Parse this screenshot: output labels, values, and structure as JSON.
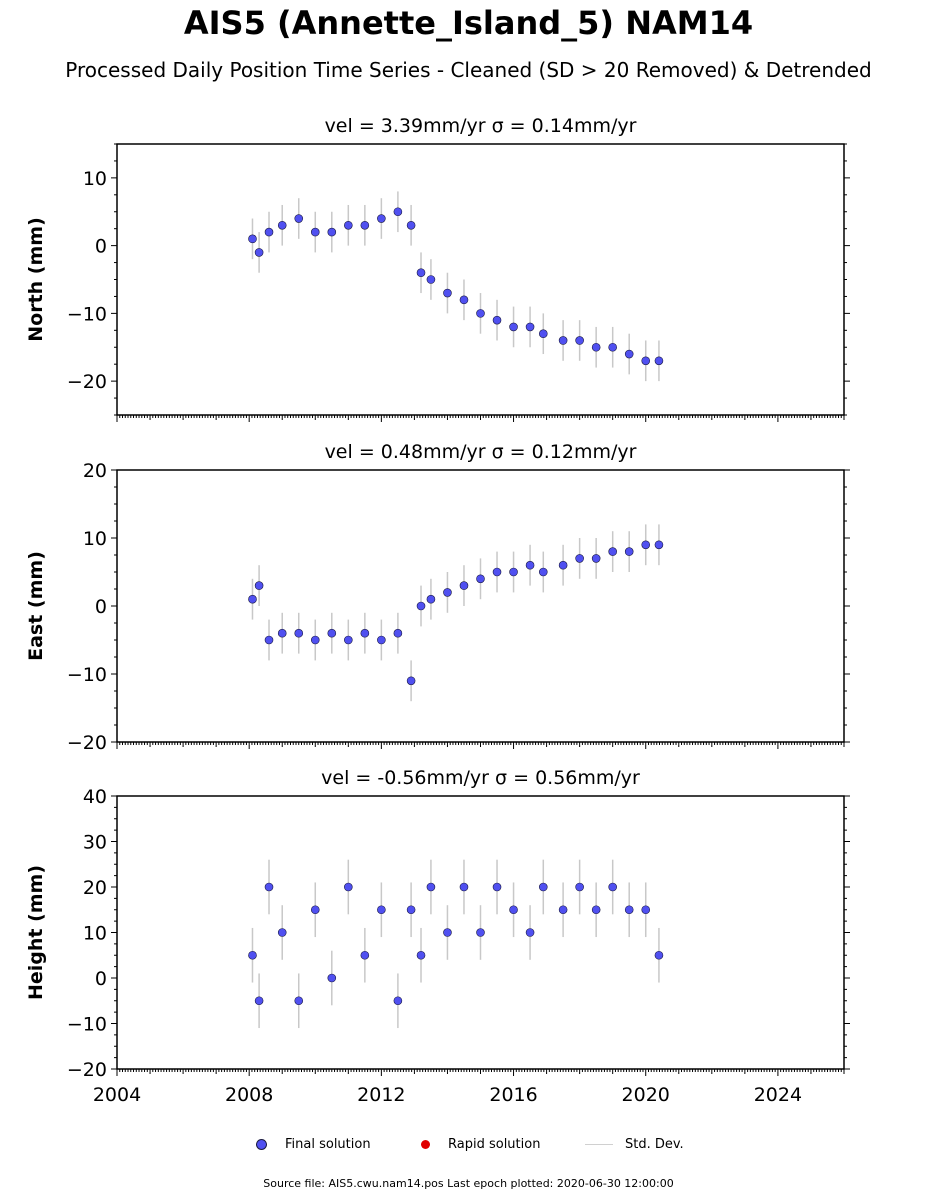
{
  "title": "AIS5 (Annette_Island_5) NAM14",
  "subtitle": "Processed Daily Position Time Series - Cleaned (SD > 20 Removed) & Detrended",
  "footer": "Source file: AIS5.cwu.nam14.pos  Last epoch plotted: 2020-06-30 12:00:00",
  "legend": {
    "final": "Final solution",
    "rapid": "Rapid solution",
    "std": "Std. Dev."
  },
  "colors": {
    "final_fill": "#5050f0",
    "final_edge": "#1a1a40",
    "rapid": "#e00000",
    "std_dev": "#c8c8c8"
  },
  "chart_data": [
    {
      "type": "scatter",
      "panel": "north",
      "title": "vel = 3.39mm/yr   σ = 0.14mm/yr",
      "ylabel": "North (mm)",
      "xlabel": "",
      "ylim": [
        -25,
        15
      ],
      "yticks": [
        -20,
        -10,
        0,
        10
      ],
      "xlim": [
        2004,
        2026
      ],
      "xticks": [
        2004,
        2008,
        2012,
        2016,
        2020,
        2024
      ],
      "series": [
        {
          "name": "Final solution",
          "x": [
            2008.1,
            2008.3,
            2008.6,
            2009.0,
            2009.5,
            2010.0,
            2010.5,
            2011.0,
            2011.5,
            2012.0,
            2012.5,
            2012.9,
            2013.2,
            2013.5,
            2014.0,
            2014.5,
            2015.0,
            2015.5,
            2016.0,
            2016.5,
            2016.9,
            2017.5,
            2018.0,
            2018.5,
            2019.0,
            2019.5,
            2020.0,
            2020.4
          ],
          "y": [
            1,
            -1,
            2,
            3,
            4,
            2,
            2,
            3,
            3,
            4,
            5,
            3,
            -4,
            -5,
            -7,
            -8,
            -10,
            -11,
            -12,
            -12,
            -13,
            -14,
            -14,
            -15,
            -15,
            -16,
            -17,
            -17
          ],
          "yerr": [
            3,
            3,
            3,
            3,
            3,
            3,
            3,
            3,
            3,
            3,
            3,
            3,
            3,
            3,
            3,
            3,
            3,
            3,
            3,
            3,
            3,
            3,
            3,
            3,
            3,
            3,
            3,
            3
          ]
        }
      ]
    },
    {
      "type": "scatter",
      "panel": "east",
      "title": "vel = 0.48mm/yr   σ = 0.12mm/yr",
      "ylabel": "East (mm)",
      "xlabel": "",
      "ylim": [
        -20,
        20
      ],
      "yticks": [
        -20,
        -10,
        0,
        10,
        20
      ],
      "xlim": [
        2004,
        2026
      ],
      "xticks": [
        2004,
        2008,
        2012,
        2016,
        2020,
        2024
      ],
      "series": [
        {
          "name": "Final solution",
          "x": [
            2008.1,
            2008.3,
            2008.6,
            2009.0,
            2009.5,
            2010.0,
            2010.5,
            2011.0,
            2011.5,
            2012.0,
            2012.5,
            2012.9,
            2013.2,
            2013.5,
            2014.0,
            2014.5,
            2015.0,
            2015.5,
            2016.0,
            2016.5,
            2016.9,
            2017.5,
            2018.0,
            2018.5,
            2019.0,
            2019.5,
            2020.0,
            2020.4
          ],
          "y": [
            1,
            3,
            -5,
            -4,
            -4,
            -5,
            -4,
            -5,
            -4,
            -5,
            -4,
            -11,
            0,
            1,
            2,
            3,
            4,
            5,
            5,
            6,
            5,
            6,
            7,
            7,
            8,
            8,
            9,
            9
          ],
          "yerr": [
            3,
            3,
            3,
            3,
            3,
            3,
            3,
            3,
            3,
            3,
            3,
            3,
            3,
            3,
            3,
            3,
            3,
            3,
            3,
            3,
            3,
            3,
            3,
            3,
            3,
            3,
            3,
            3
          ]
        }
      ]
    },
    {
      "type": "scatter",
      "panel": "height",
      "title": "vel = -0.56mm/yr   σ = 0.56mm/yr",
      "ylabel": "Height (mm)",
      "xlabel": "",
      "ylim": [
        -20,
        40
      ],
      "yticks": [
        -20,
        -10,
        0,
        10,
        20,
        30,
        40
      ],
      "xlim": [
        2004,
        2026
      ],
      "xticks": [
        2004,
        2008,
        2012,
        2016,
        2020,
        2024
      ],
      "series": [
        {
          "name": "Final solution",
          "x": [
            2008.1,
            2008.3,
            2008.6,
            2009.0,
            2009.5,
            2010.0,
            2010.5,
            2011.0,
            2011.5,
            2012.0,
            2012.5,
            2012.9,
            2013.2,
            2013.5,
            2014.0,
            2014.5,
            2015.0,
            2015.5,
            2016.0,
            2016.5,
            2016.9,
            2017.5,
            2018.0,
            2018.5,
            2019.0,
            2019.5,
            2020.0,
            2020.4
          ],
          "y": [
            5,
            -5,
            20,
            10,
            -5,
            15,
            0,
            20,
            5,
            15,
            -5,
            15,
            5,
            20,
            10,
            20,
            10,
            20,
            15,
            10,
            20,
            15,
            20,
            15,
            20,
            15,
            15,
            5
          ],
          "yerr": [
            6,
            6,
            6,
            6,
            6,
            6,
            6,
            6,
            6,
            6,
            6,
            6,
            6,
            6,
            6,
            6,
            6,
            6,
            6,
            6,
            6,
            6,
            6,
            6,
            6,
            6,
            6,
            6
          ]
        }
      ]
    }
  ]
}
